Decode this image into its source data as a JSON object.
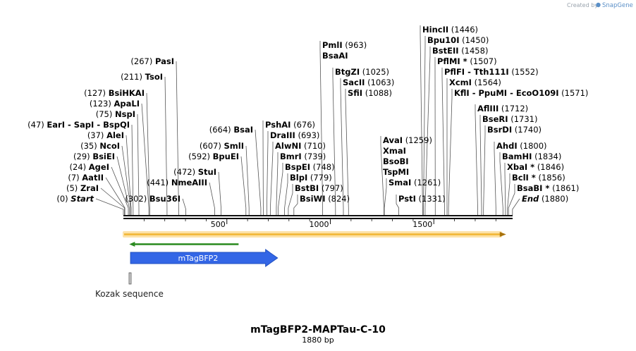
{
  "brand": {
    "prefix": "Created by",
    "name": "SnapGene"
  },
  "title": "mTagBFP2-MAPTau-C-10",
  "length_label": "1880 bp",
  "sequence_length": 1880,
  "scale_ticks": [
    {
      "value": 500,
      "label": "500"
    },
    {
      "value": 1000,
      "label": "1000"
    },
    {
      "value": 1500,
      "label": "1500"
    }
  ],
  "colors": {
    "backbone": "#111111",
    "orange_feature": "#f2b531",
    "green_feature": "#2a8a1f",
    "cds": "#3366e6",
    "kozak": "#cfcfcf",
    "leader": "#777777"
  },
  "features": [
    {
      "name": "full-span-orange",
      "start": 1,
      "end": 1880,
      "strand": "+",
      "label": ""
    },
    {
      "name": "reverse-green",
      "start": 25,
      "end": 560,
      "strand": "-",
      "label": ""
    },
    {
      "name": "cds",
      "start": 31,
      "end": 745,
      "strand": "+",
      "label": "mTagBFP2"
    },
    {
      "name": "kozak",
      "start": 25,
      "end": 34,
      "strand": "+",
      "label": "Kozak sequence"
    }
  ],
  "sites": [
    {
      "enzyme": "Start",
      "pos": "(0)",
      "site": 0,
      "kind": "marker"
    },
    {
      "enzyme": "ZraI",
      "pos": "(5)",
      "site": 5
    },
    {
      "enzyme": "AatII",
      "pos": "(7)",
      "site": 7
    },
    {
      "enzyme": "AgeI",
      "pos": "(24)",
      "site": 24
    },
    {
      "enzyme": "BsiEI",
      "pos": "(29)",
      "site": 29
    },
    {
      "enzyme": "NcoI",
      "pos": "(35)",
      "site": 35
    },
    {
      "enzyme": "AleI",
      "pos": "(37)",
      "site": 37
    },
    {
      "enzyme": "EarI  -  SapI  -  BspQI",
      "pos": "(47)",
      "site": 47
    },
    {
      "enzyme": "NspI",
      "pos": "(75)",
      "site": 75
    },
    {
      "enzyme": "ApaLI",
      "pos": "(123)",
      "site": 123
    },
    {
      "enzyme": "BsiHKAI",
      "pos": "(127)",
      "site": 127
    },
    {
      "enzyme": "TsoI",
      "pos": "(211)",
      "site": 211
    },
    {
      "enzyme": "PasI",
      "pos": "(267)",
      "site": 267
    },
    {
      "enzyme": "Bsu36I",
      "pos": "(302)",
      "site": 302
    },
    {
      "enzyme": "NmeAIII",
      "pos": "(441)",
      "site": 441
    },
    {
      "enzyme": "StuI",
      "pos": "(472)",
      "site": 472
    },
    {
      "enzyme": "BpuEI",
      "pos": "(592)",
      "site": 592
    },
    {
      "enzyme": "SmlI",
      "pos": "(607)",
      "site": 607
    },
    {
      "enzyme": "BsaI",
      "pos": "(664)",
      "site": 664
    },
    {
      "enzyme": "PshAI",
      "pos": "(676)",
      "site": 676
    },
    {
      "enzyme": "DraIII",
      "pos": "(693)",
      "site": 693
    },
    {
      "enzyme": "AlwNI",
      "pos": "(710)",
      "site": 710
    },
    {
      "enzyme": "BmrI",
      "pos": "(739)",
      "site": 739
    },
    {
      "enzyme": "BspEI",
      "pos": "(748)",
      "site": 748
    },
    {
      "enzyme": "BlpI",
      "pos": "(779)",
      "site": 779
    },
    {
      "enzyme": "BstBI",
      "pos": "(797)",
      "site": 797
    },
    {
      "enzyme": "BsiWI",
      "pos": "(824)",
      "site": 824
    },
    {
      "enzyme": "PmlI",
      "pos": "(963)",
      "site": 963
    },
    {
      "enzyme": "BsaAI",
      "pos": "",
      "site": 963
    },
    {
      "enzyme": "BtgZI",
      "pos": "(1025)",
      "site": 1025
    },
    {
      "enzyme": "SacII",
      "pos": "(1063)",
      "site": 1063
    },
    {
      "enzyme": "SfiI",
      "pos": "(1088)",
      "site": 1088
    },
    {
      "enzyme": "AvaI",
      "pos": "(1259)",
      "site": 1259
    },
    {
      "enzyme": "XmaI",
      "pos": "",
      "site": 1259
    },
    {
      "enzyme": "BsoBI",
      "pos": "",
      "site": 1259
    },
    {
      "enzyme": "TspMI",
      "pos": "",
      "site": 1259
    },
    {
      "enzyme": "SmaI",
      "pos": "(1261)",
      "site": 1261
    },
    {
      "enzyme": "PstI",
      "pos": "(1331)",
      "site": 1331
    },
    {
      "enzyme": "HincII",
      "pos": "(1446)",
      "site": 1446
    },
    {
      "enzyme": "Bpu10I",
      "pos": "(1450)",
      "site": 1450
    },
    {
      "enzyme": "BstEII",
      "pos": "(1458)",
      "site": 1458
    },
    {
      "enzyme": "PflMI *",
      "pos": "(1507)",
      "site": 1507
    },
    {
      "enzyme": "PflFI  -  Tth111I",
      "pos": "(1552)",
      "site": 1552
    },
    {
      "enzyme": "XcmI",
      "pos": "(1564)",
      "site": 1564
    },
    {
      "enzyme": "KflI  -  PpuMI  -  EcoO109I",
      "pos": "(1571)",
      "site": 1571
    },
    {
      "enzyme": "AflIII",
      "pos": "(1712)",
      "site": 1712
    },
    {
      "enzyme": "BseRI",
      "pos": "(1731)",
      "site": 1731
    },
    {
      "enzyme": "BsrDI",
      "pos": "(1740)",
      "site": 1740
    },
    {
      "enzyme": "AhdI",
      "pos": "(1800)",
      "site": 1800
    },
    {
      "enzyme": "BamHI",
      "pos": "(1834)",
      "site": 1834
    },
    {
      "enzyme": "XbaI *",
      "pos": "(1846)",
      "site": 1846
    },
    {
      "enzyme": "BclI *",
      "pos": "(1856)",
      "site": 1856
    },
    {
      "enzyme": "BsaBI *",
      "pos": "(1861)",
      "site": 1861
    },
    {
      "enzyme": "End",
      "pos": "(1880)",
      "site": 1880,
      "kind": "marker"
    }
  ]
}
